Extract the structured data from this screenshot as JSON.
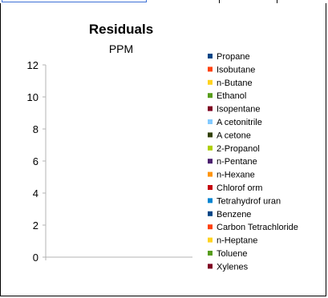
{
  "chart_data": {
    "type": "bar",
    "title": "Residuals",
    "subtitle": "PPM",
    "xlabel": "",
    "ylabel": "",
    "ylim": [
      0,
      12
    ],
    "yticks": [
      0,
      2,
      4,
      6,
      8,
      10,
      12
    ],
    "ytick_labels": [
      "0",
      "2",
      "4",
      "6",
      "8",
      "10",
      "12"
    ],
    "grid": false,
    "legend_position": "right",
    "categories": [],
    "series": [
      {
        "name": "Propane",
        "values": [],
        "color": "#004586"
      },
      {
        "name": "Isobutane",
        "values": [],
        "color": "#ff420e"
      },
      {
        "name": "n-Butane",
        "values": [],
        "color": "#ffd320"
      },
      {
        "name": "Ethanol",
        "values": [],
        "color": "#579d1c"
      },
      {
        "name": "Isopentane",
        "values": [],
        "color": "#7e0021"
      },
      {
        "name": "A cetonitrile",
        "values": [],
        "color": "#83caff"
      },
      {
        "name": "A cetone",
        "values": [],
        "color": "#314004"
      },
      {
        "name": "2-Propanol",
        "values": [],
        "color": "#aecf00"
      },
      {
        "name": "n-Pentane",
        "values": [],
        "color": "#4b1f6f"
      },
      {
        "name": "n-Hexane",
        "values": [],
        "color": "#ff950e"
      },
      {
        "name": "Chlorof orm",
        "values": [],
        "color": "#c5000b"
      },
      {
        "name": "Tetrahydrof uran",
        "values": [],
        "color": "#0084d1"
      },
      {
        "name": "Benzene",
        "values": [],
        "color": "#004586"
      },
      {
        "name": "Carbon Tetrachloride",
        "values": [],
        "color": "#ff420e"
      },
      {
        "name": "n-Heptane",
        "values": [],
        "color": "#ffd320"
      },
      {
        "name": "Toluene",
        "values": [],
        "color": "#579d1c"
      },
      {
        "name": "Xylenes",
        "values": [],
        "color": "#7e0021"
      }
    ]
  }
}
